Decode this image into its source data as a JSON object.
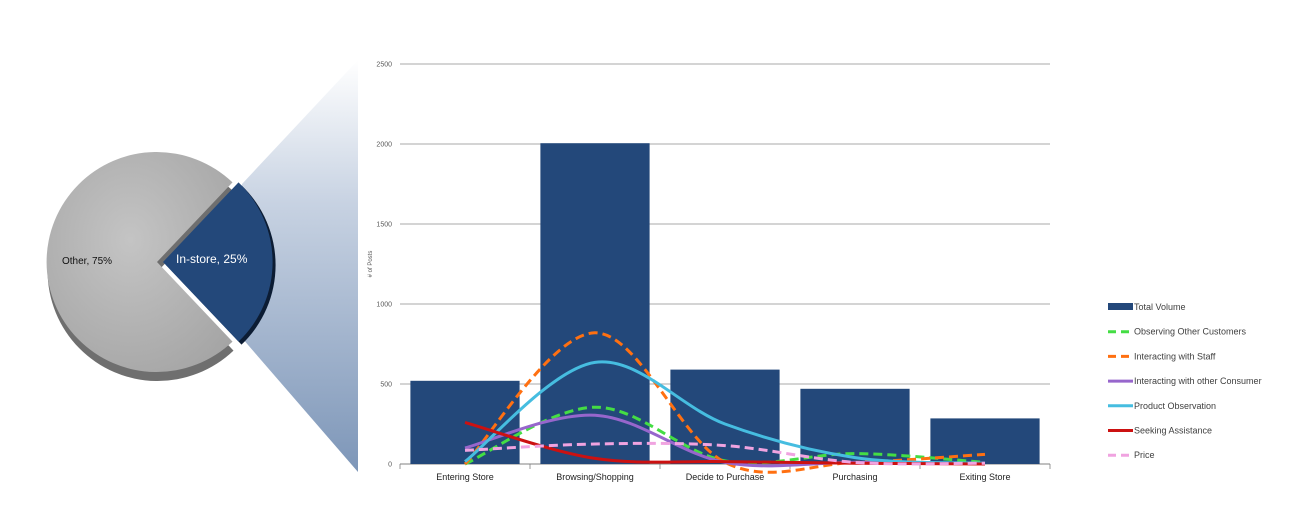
{
  "chart_data": [
    {
      "type": "pie",
      "slices": [
        {
          "label": "Other, 75%",
          "value": 75,
          "color": "#b3b3b3"
        },
        {
          "label": "In-store, 25%",
          "value": 25,
          "color": "#23487a"
        }
      ]
    },
    {
      "type": "bar",
      "categories": [
        "Entering Store",
        "Browsing/Shopping",
        "Decide to Purchase",
        "Purchasing",
        "Exiting Store"
      ],
      "ylabel": "# of Posts",
      "ylim": [
        0,
        2500
      ],
      "yticks": [
        "0",
        "500",
        "1000",
        "1500",
        "2000",
        "2500"
      ],
      "grid": true,
      "legend_position": "right",
      "bars": {
        "name": "Total Volume",
        "values": [
          520,
          2005,
          590,
          470,
          285
        ],
        "color": "#23487a"
      },
      "series": [
        {
          "name": "Observing Other Customers",
          "values": [
            0,
            355,
            20,
            65,
            10
          ],
          "color": "#44dd44",
          "dashed": true
        },
        {
          "name": "Interacting with Staff",
          "values": [
            0,
            820,
            10,
            10,
            60
          ],
          "color": "#ff7011",
          "dashed": true
        },
        {
          "name": "Interacting with other Consumer",
          "values": [
            100,
            305,
            10,
            10,
            5
          ],
          "color": "#9766cc",
          "dashed": false
        },
        {
          "name": "Product Observation",
          "values": [
            15,
            635,
            250,
            40,
            5
          ],
          "color": "#46bde0",
          "dashed": false
        },
        {
          "name": "Seeking Assistance",
          "values": [
            260,
            35,
            15,
            5,
            0
          ],
          "color": "#cc1111",
          "dashed": false
        },
        {
          "name": "Price",
          "values": [
            85,
            125,
            115,
            10,
            5
          ],
          "color": "#f0a3e0",
          "dashed": true
        }
      ]
    }
  ]
}
